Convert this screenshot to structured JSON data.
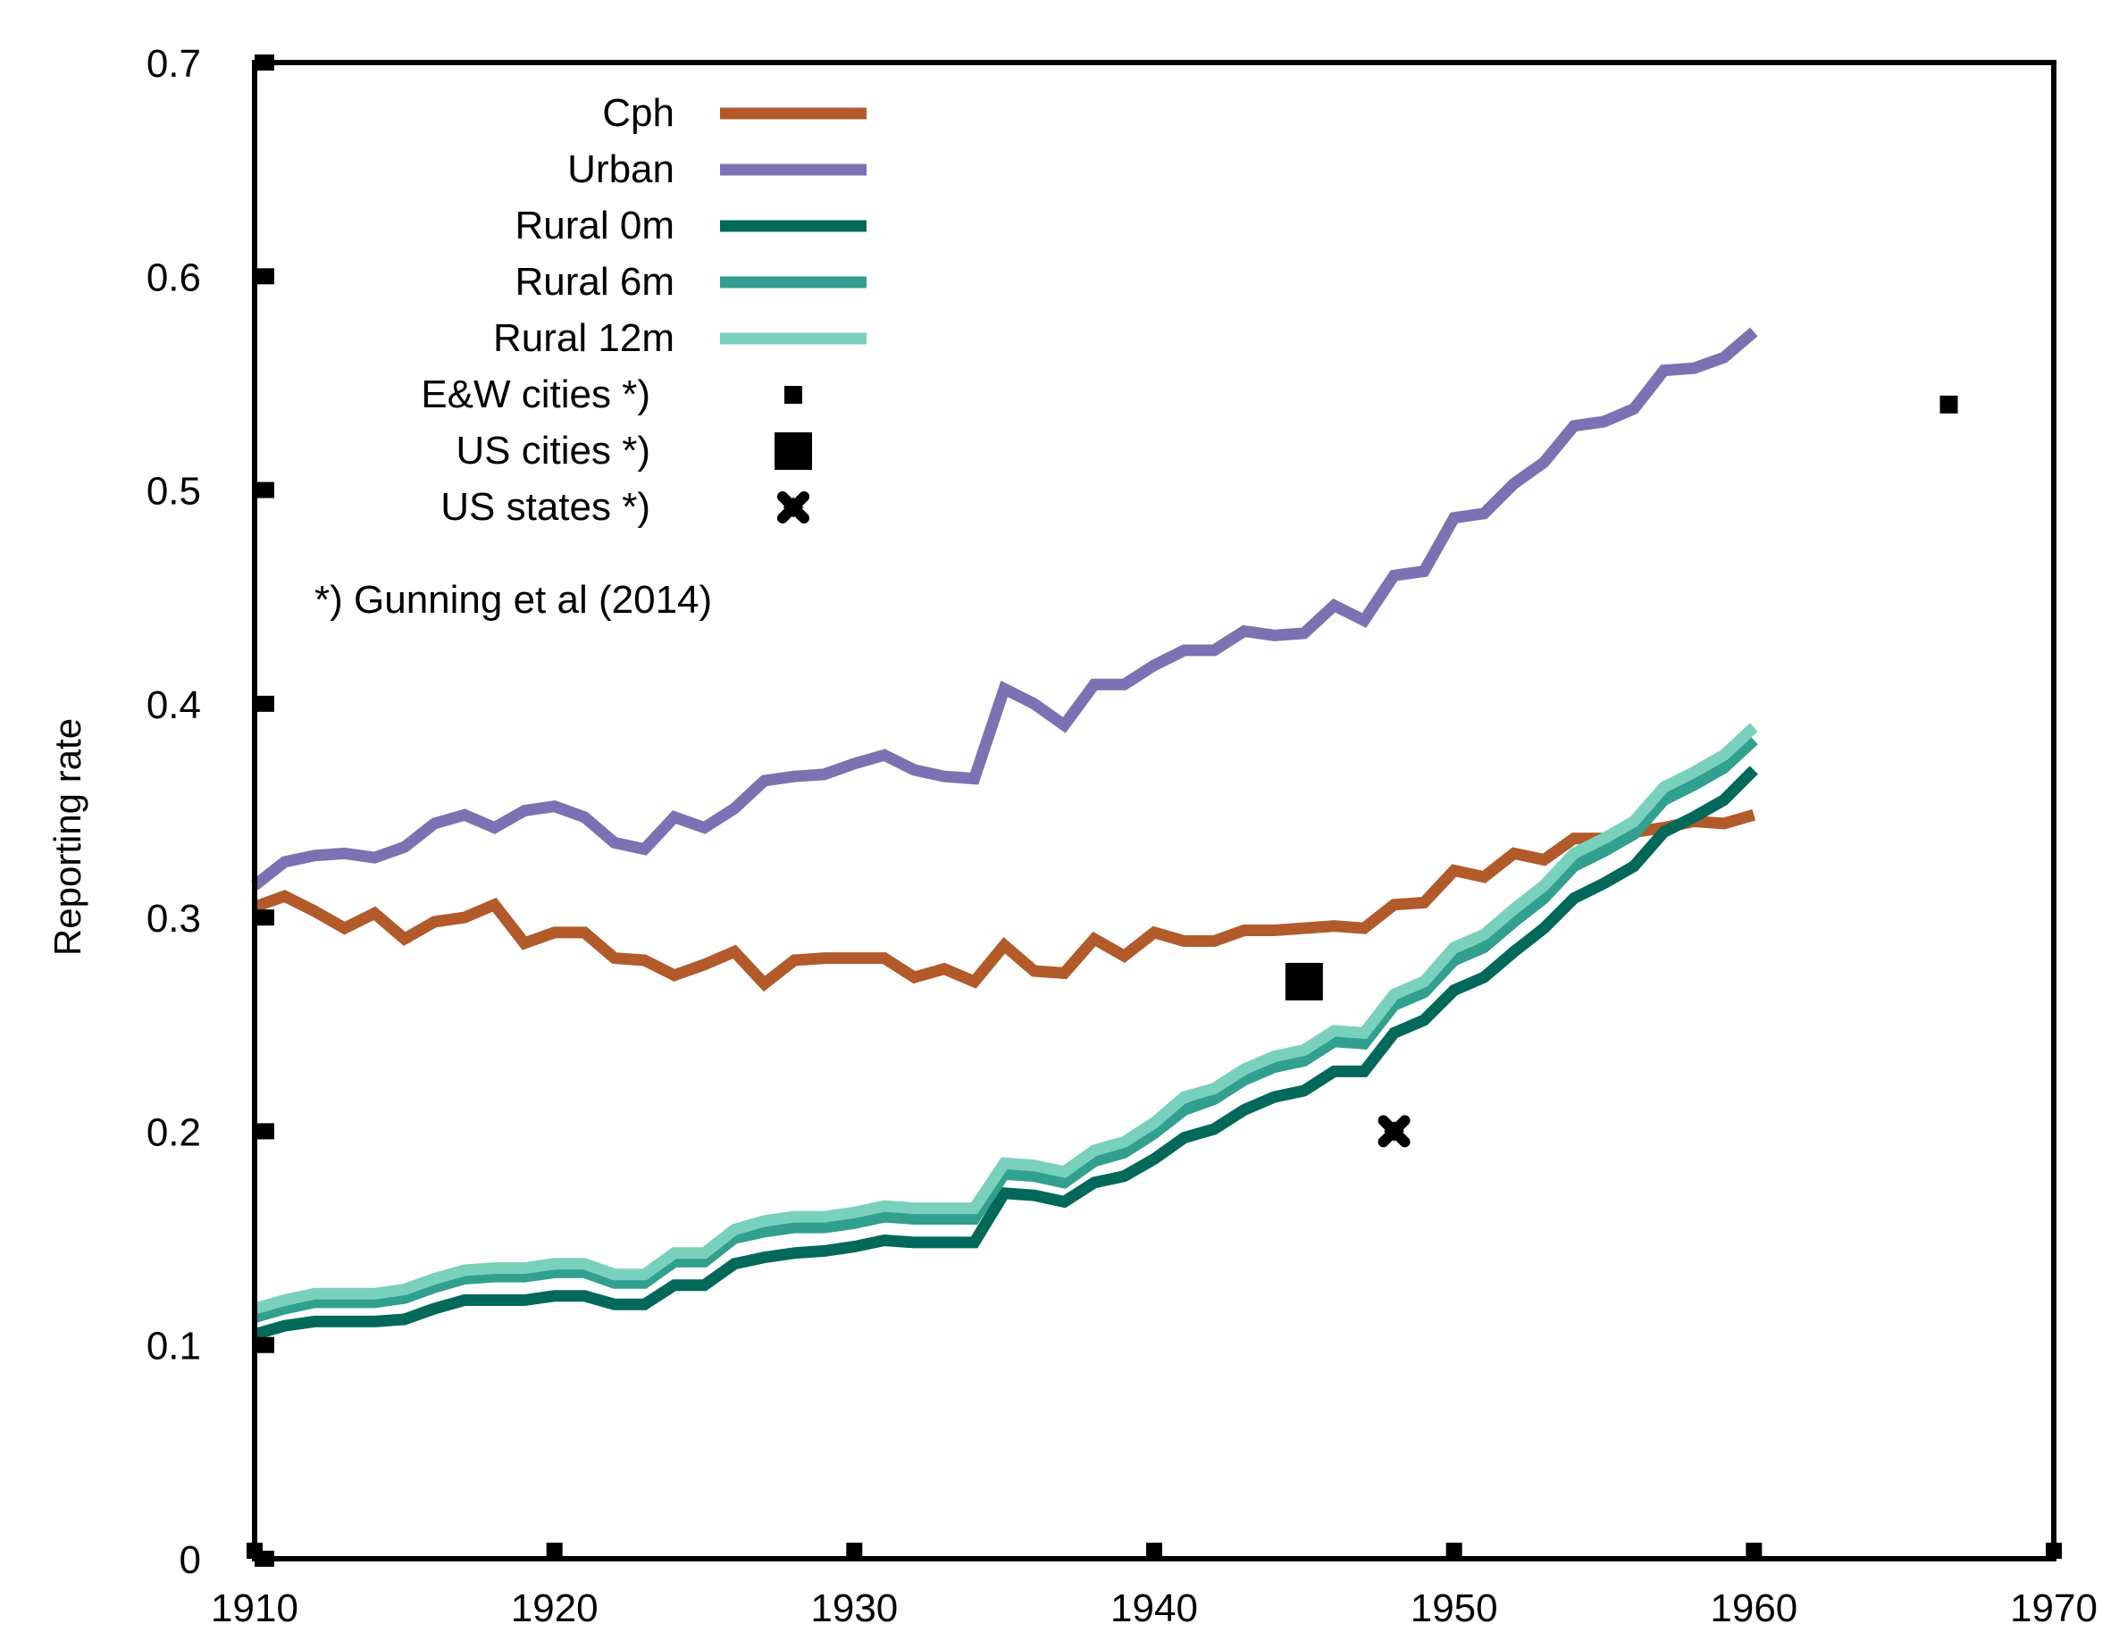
{
  "chart_data": {
    "type": "line",
    "title": "",
    "xlabel": "",
    "ylabel": "Reporting rate",
    "xlim": [
      1910,
      1970
    ],
    "ylim": [
      0,
      0.7
    ],
    "xticks": [
      1910,
      1920,
      1930,
      1940,
      1950,
      1960,
      1970
    ],
    "yticks": [
      0,
      0.1,
      0.2,
      0.3,
      0.4,
      0.5,
      0.6,
      0.7
    ],
    "xtick_labels": [
      "1910",
      "1920",
      "1930",
      "1940",
      "1950",
      "1960",
      "1970"
    ],
    "ytick_labels": [
      "0",
      "0.1",
      "0.2",
      "0.3",
      "0.4",
      "0.5",
      "0.6",
      "0.7"
    ],
    "grid": false,
    "legend_position": "top-left",
    "note": "*) Gunning et al (2014)",
    "series": [
      {
        "name": "Cph",
        "color": "#b35a2a",
        "x": [
          1910,
          1911,
          1912,
          1913,
          1914,
          1915,
          1916,
          1917,
          1918,
          1919,
          1920,
          1921,
          1922,
          1923,
          1924,
          1925,
          1926,
          1927,
          1928,
          1929,
          1930,
          1931,
          1932,
          1933,
          1934,
          1935,
          1936,
          1937,
          1938,
          1939,
          1940,
          1941,
          1942,
          1943,
          1944,
          1945,
          1946,
          1947,
          1948,
          1949,
          1950,
          1951,
          1952,
          1953,
          1954,
          1955,
          1956,
          1957,
          1958,
          1959,
          1960
        ],
        "y": [
          0.305,
          0.31,
          0.303,
          0.295,
          0.302,
          0.29,
          0.298,
          0.3,
          0.306,
          0.288,
          0.293,
          0.293,
          0.281,
          0.28,
          0.273,
          0.278,
          0.284,
          0.269,
          0.28,
          0.281,
          0.281,
          0.281,
          0.272,
          0.276,
          0.27,
          0.287,
          0.275,
          0.274,
          0.29,
          0.282,
          0.293,
          0.289,
          0.289,
          0.294,
          0.294,
          0.295,
          0.296,
          0.295,
          0.306,
          0.307,
          0.322,
          0.319,
          0.33,
          0.327,
          0.337,
          0.337,
          0.34,
          0.342,
          0.345,
          0.344,
          0.348
        ]
      },
      {
        "name": "Urban",
        "color": "#7b72b4",
        "x": [
          1910,
          1911,
          1912,
          1913,
          1914,
          1915,
          1916,
          1917,
          1918,
          1919,
          1920,
          1921,
          1922,
          1923,
          1924,
          1925,
          1926,
          1927,
          1928,
          1929,
          1930,
          1931,
          1932,
          1933,
          1934,
          1935,
          1936,
          1937,
          1938,
          1939,
          1940,
          1941,
          1942,
          1943,
          1944,
          1945,
          1946,
          1947,
          1948,
          1949,
          1950,
          1951,
          1952,
          1953,
          1954,
          1955,
          1956,
          1957,
          1958,
          1959,
          1960
        ],
        "y": [
          0.315,
          0.326,
          0.329,
          0.33,
          0.328,
          0.333,
          0.344,
          0.348,
          0.342,
          0.35,
          0.352,
          0.347,
          0.335,
          0.332,
          0.347,
          0.342,
          0.351,
          0.364,
          0.366,
          0.367,
          0.372,
          0.376,
          0.369,
          0.366,
          0.365,
          0.407,
          0.4,
          0.39,
          0.409,
          0.409,
          0.418,
          0.425,
          0.425,
          0.434,
          0.432,
          0.433,
          0.446,
          0.439,
          0.46,
          0.462,
          0.487,
          0.489,
          0.503,
          0.513,
          0.53,
          0.532,
          0.538,
          0.556,
          0.557,
          0.562,
          0.574
        ]
      },
      {
        "name": "Rural 0m",
        "color": "#00695a",
        "x": [
          1910,
          1911,
          1912,
          1913,
          1914,
          1915,
          1916,
          1917,
          1918,
          1919,
          1920,
          1921,
          1922,
          1923,
          1924,
          1925,
          1926,
          1927,
          1928,
          1929,
          1930,
          1931,
          1932,
          1933,
          1934,
          1935,
          1936,
          1937,
          1938,
          1939,
          1940,
          1941,
          1942,
          1943,
          1944,
          1945,
          1946,
          1947,
          1948,
          1949,
          1950,
          1951,
          1952,
          1953,
          1954,
          1955,
          1956,
          1957,
          1958,
          1959,
          1960
        ],
        "y": [
          0.105,
          0.109,
          0.111,
          0.111,
          0.111,
          0.112,
          0.117,
          0.121,
          0.121,
          0.121,
          0.123,
          0.123,
          0.119,
          0.119,
          0.128,
          0.128,
          0.138,
          0.141,
          0.143,
          0.144,
          0.146,
          0.149,
          0.148,
          0.148,
          0.148,
          0.171,
          0.17,
          0.167,
          0.176,
          0.179,
          0.187,
          0.197,
          0.201,
          0.21,
          0.216,
          0.219,
          0.228,
          0.228,
          0.246,
          0.252,
          0.266,
          0.272,
          0.284,
          0.295,
          0.309,
          0.316,
          0.324,
          0.34,
          0.347,
          0.355,
          0.369
        ]
      },
      {
        "name": "Rural 6m",
        "color": "#31a08e",
        "x": [
          1910,
          1911,
          1912,
          1913,
          1914,
          1915,
          1916,
          1917,
          1918,
          1919,
          1920,
          1921,
          1922,
          1923,
          1924,
          1925,
          1926,
          1927,
          1928,
          1929,
          1930,
          1931,
          1932,
          1933,
          1934,
          1935,
          1936,
          1937,
          1938,
          1939,
          1940,
          1941,
          1942,
          1943,
          1944,
          1945,
          1946,
          1947,
          1948,
          1949,
          1950,
          1951,
          1952,
          1953,
          1954,
          1955,
          1956,
          1957,
          1958,
          1959,
          1960
        ],
        "y": [
          0.113,
          0.117,
          0.12,
          0.12,
          0.12,
          0.122,
          0.127,
          0.131,
          0.132,
          0.132,
          0.134,
          0.134,
          0.129,
          0.129,
          0.139,
          0.139,
          0.15,
          0.153,
          0.155,
          0.155,
          0.157,
          0.16,
          0.159,
          0.159,
          0.159,
          0.18,
          0.179,
          0.176,
          0.186,
          0.19,
          0.199,
          0.21,
          0.215,
          0.224,
          0.23,
          0.233,
          0.242,
          0.241,
          0.259,
          0.265,
          0.28,
          0.286,
          0.298,
          0.309,
          0.324,
          0.331,
          0.339,
          0.355,
          0.362,
          0.37,
          0.383
        ]
      },
      {
        "name": "Rural 12m",
        "color": "#79d1bd",
        "x": [
          1910,
          1911,
          1912,
          1913,
          1914,
          1915,
          1916,
          1917,
          1918,
          1919,
          1920,
          1921,
          1922,
          1923,
          1924,
          1925,
          1926,
          1927,
          1928,
          1929,
          1930,
          1931,
          1932,
          1933,
          1934,
          1935,
          1936,
          1937,
          1938,
          1939,
          1940,
          1941,
          1942,
          1943,
          1944,
          1945,
          1946,
          1947,
          1948,
          1949,
          1950,
          1951,
          1952,
          1953,
          1954,
          1955,
          1956,
          1957,
          1958,
          1959,
          1960
        ],
        "y": [
          0.117,
          0.121,
          0.124,
          0.124,
          0.124,
          0.126,
          0.131,
          0.135,
          0.136,
          0.136,
          0.138,
          0.138,
          0.133,
          0.133,
          0.143,
          0.143,
          0.154,
          0.158,
          0.16,
          0.16,
          0.162,
          0.165,
          0.164,
          0.164,
          0.164,
          0.185,
          0.184,
          0.181,
          0.191,
          0.195,
          0.204,
          0.216,
          0.22,
          0.229,
          0.235,
          0.238,
          0.247,
          0.246,
          0.264,
          0.27,
          0.286,
          0.292,
          0.304,
          0.315,
          0.33,
          0.337,
          0.345,
          0.361,
          0.368,
          0.376,
          0.389
        ]
      }
    ],
    "points": [
      {
        "name": "E&W cities *)",
        "marker": "small-square",
        "x": 1966.5,
        "y": 0.54
      },
      {
        "name": "US cities *)",
        "marker": "large-square",
        "x": 1945,
        "y": 0.27
      },
      {
        "name": "US states *)",
        "marker": "diamond-cross",
        "x": 1948,
        "y": 0.2
      }
    ]
  }
}
